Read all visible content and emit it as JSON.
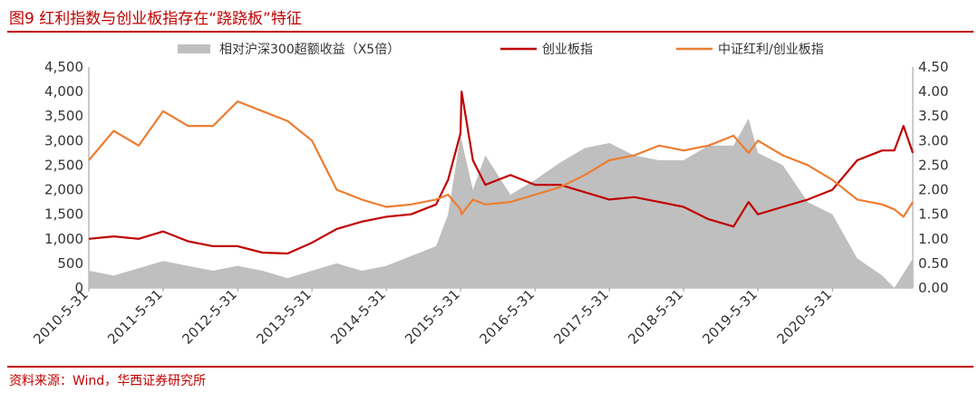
{
  "figure": {
    "title": "图9 红利指数与创业板指存在“跷跷板”特征",
    "source": "资料来源：Wind，华西证券研究所"
  },
  "chart_data": {
    "type": "line",
    "legend_position": "top",
    "x_ticks": [
      "2010-5-31",
      "2011-5-31",
      "2012-5-31",
      "2013-5-31",
      "2014-5-31",
      "2015-5-31",
      "2016-5-31",
      "2017-5-31",
      "2018-5-31",
      "2019-5-31",
      "2020-5-31"
    ],
    "xlim": [
      "2010-05-31",
      "2021-06-30"
    ],
    "ylim_left": [
      0,
      4500
    ],
    "ylim_right": [
      0,
      4.5
    ],
    "y_ticks_left": [
      "0",
      "500",
      "1,000",
      "1,500",
      "2,000",
      "2,500",
      "3,000",
      "3,500",
      "4,000",
      "4,500"
    ],
    "y_ticks_right": [
      "0.00",
      "0.50",
      "1.00",
      "1.50",
      "2.00",
      "2.50",
      "3.00",
      "3.50",
      "4.00",
      "4.50"
    ],
    "series": [
      {
        "name": "相对沪深300超额收益（X5倍）",
        "type": "area",
        "axis": "right",
        "color": "#bfbfbf",
        "x": [
          "2010-05-31",
          "2010-09-30",
          "2011-01-31",
          "2011-05-31",
          "2011-09-30",
          "2012-01-31",
          "2012-05-31",
          "2012-09-30",
          "2013-01-31",
          "2013-05-31",
          "2013-09-30",
          "2014-01-31",
          "2014-05-31",
          "2014-09-30",
          "2015-01-31",
          "2015-03-31",
          "2015-05-31",
          "2015-07-31",
          "2015-09-30",
          "2016-01-31",
          "2016-05-31",
          "2016-09-30",
          "2017-01-31",
          "2017-05-31",
          "2017-09-30",
          "2018-01-31",
          "2018-05-31",
          "2018-09-30",
          "2019-01-31",
          "2019-04-15",
          "2019-05-31",
          "2019-09-30",
          "2020-01-31",
          "2020-05-31",
          "2020-09-30",
          "2021-01-31",
          "2021-03-31",
          "2021-06-30"
        ],
        "values": [
          0.35,
          0.25,
          0.4,
          0.55,
          0.45,
          0.35,
          0.45,
          0.35,
          0.2,
          0.35,
          0.5,
          0.35,
          0.45,
          0.65,
          0.85,
          1.5,
          3.1,
          2.0,
          2.7,
          1.9,
          2.2,
          2.55,
          2.85,
          2.95,
          2.7,
          2.6,
          2.6,
          2.9,
          2.9,
          3.45,
          2.75,
          2.5,
          1.75,
          1.5,
          0.6,
          0.25,
          0.0,
          0.6
        ]
      },
      {
        "name": "创业板指",
        "type": "line",
        "axis": "left",
        "color": "#c00000",
        "x": [
          "2010-05-31",
          "2010-09-30",
          "2011-01-31",
          "2011-05-31",
          "2011-09-30",
          "2012-01-31",
          "2012-05-31",
          "2012-09-30",
          "2013-01-31",
          "2013-05-31",
          "2013-09-30",
          "2014-01-31",
          "2014-05-31",
          "2014-09-30",
          "2015-01-31",
          "2015-03-31",
          "2015-05-31",
          "2015-06-05",
          "2015-07-31",
          "2015-09-30",
          "2016-01-31",
          "2016-05-31",
          "2016-09-30",
          "2017-01-31",
          "2017-05-31",
          "2017-09-30",
          "2018-01-31",
          "2018-05-31",
          "2018-09-30",
          "2019-01-31",
          "2019-04-15",
          "2019-05-31",
          "2019-09-30",
          "2020-01-31",
          "2020-05-31",
          "2020-09-30",
          "2021-01-31",
          "2021-03-31",
          "2021-05-15",
          "2021-06-30"
        ],
        "values": [
          1000,
          1050,
          1000,
          1150,
          950,
          850,
          850,
          720,
          700,
          920,
          1200,
          1350,
          1450,
          1500,
          1700,
          2200,
          3150,
          4000,
          2600,
          2100,
          2300,
          2100,
          2100,
          1950,
          1800,
          1850,
          1750,
          1650,
          1400,
          1250,
          1750,
          1500,
          1650,
          1800,
          2000,
          2600,
          2800,
          2800,
          3300,
          2750
        ]
      },
      {
        "name": "中证红利/创业板指",
        "type": "line",
        "axis": "right",
        "color": "#ed7d31",
        "x": [
          "2010-05-31",
          "2010-09-30",
          "2011-01-31",
          "2011-05-31",
          "2011-09-30",
          "2012-01-31",
          "2012-05-31",
          "2012-09-30",
          "2013-01-31",
          "2013-05-31",
          "2013-09-30",
          "2014-01-31",
          "2014-05-31",
          "2014-09-30",
          "2015-01-31",
          "2015-03-31",
          "2015-05-31",
          "2015-06-05",
          "2015-07-31",
          "2015-09-30",
          "2016-01-31",
          "2016-05-31",
          "2016-09-30",
          "2017-01-31",
          "2017-05-31",
          "2017-09-30",
          "2018-01-31",
          "2018-05-31",
          "2018-09-30",
          "2019-01-31",
          "2019-04-15",
          "2019-05-31",
          "2019-09-30",
          "2020-01-31",
          "2020-05-31",
          "2020-09-30",
          "2021-01-31",
          "2021-03-31",
          "2021-05-15",
          "2021-06-30"
        ],
        "values": [
          2.6,
          3.2,
          2.9,
          3.6,
          3.3,
          3.3,
          3.8,
          3.6,
          3.4,
          3.0,
          2.0,
          1.8,
          1.65,
          1.7,
          1.8,
          1.9,
          1.6,
          1.5,
          1.8,
          1.7,
          1.75,
          1.9,
          2.05,
          2.3,
          2.6,
          2.7,
          2.9,
          2.8,
          2.9,
          3.1,
          2.75,
          3.0,
          2.7,
          2.5,
          2.2,
          1.8,
          1.7,
          1.6,
          1.45,
          1.75
        ]
      }
    ]
  }
}
